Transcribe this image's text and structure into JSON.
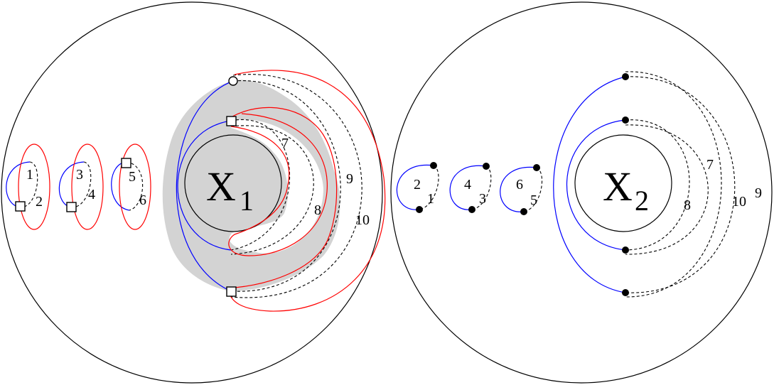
{
  "panel_left": {
    "center_label": {
      "main": "X",
      "sub": "1"
    },
    "arc_labels": [
      "1",
      "2",
      "3",
      "4",
      "5",
      "6",
      "7",
      "8",
      "9",
      "10"
    ]
  },
  "panel_right": {
    "center_label": {
      "main": "X",
      "sub": "2"
    },
    "arc_labels": [
      "2",
      "1",
      "4",
      "3",
      "6",
      "5",
      "7",
      "8",
      "9",
      "10"
    ]
  },
  "colors": {
    "outline": "#000000",
    "blue_arcs": "#0000ff",
    "red_curves": "#ff0000",
    "shaded_region": "#d3d3d3"
  }
}
